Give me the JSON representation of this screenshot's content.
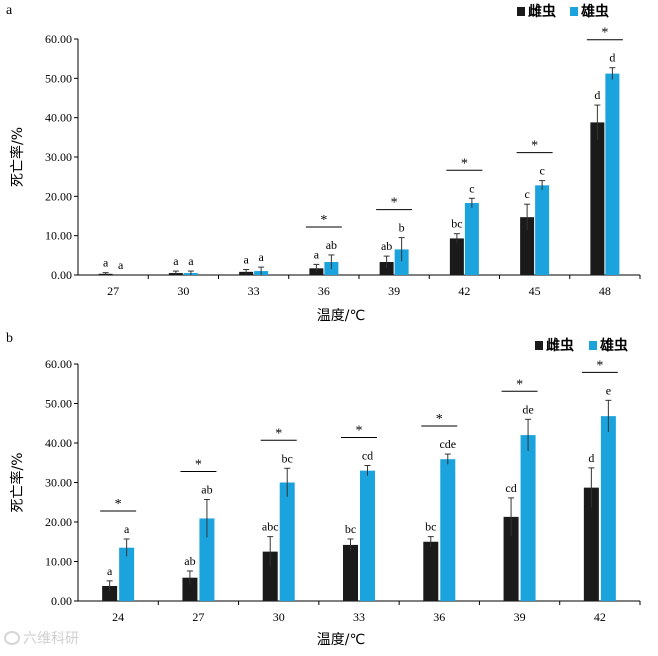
{
  "colors": {
    "female": "#1a1a1a",
    "male": "#1aa3dd",
    "axis": "#000000"
  },
  "legend": {
    "female": "雌虫",
    "male": "雄虫"
  },
  "watermark": "六维科研",
  "chart_data": [
    {
      "type": "bar",
      "panel": "a",
      "xlabel": "温度/℃",
      "ylabel": "死亡率/%",
      "ylim": [
        0,
        60
      ],
      "yticks": [
        "0.00",
        "10.00",
        "20.00",
        "30.00",
        "40.00",
        "50.00",
        "60.00"
      ],
      "categories": [
        "27",
        "30",
        "33",
        "36",
        "39",
        "42",
        "45",
        "48"
      ],
      "series": [
        {
          "name": "雌虫",
          "values": [
            0.3,
            0.5,
            0.8,
            1.7,
            3.3,
            9.3,
            14.7,
            38.8
          ],
          "errors": [
            0.3,
            0.5,
            0.6,
            1.0,
            1.5,
            1.2,
            3.3,
            4.4
          ],
          "labels": [
            "a",
            "a",
            "a",
            "a",
            "ab",
            "bc",
            "c",
            "d"
          ]
        },
        {
          "name": "雄虫",
          "values": [
            0.0,
            0.5,
            1.0,
            3.3,
            6.5,
            18.3,
            22.8,
            51.2
          ],
          "errors": [
            0.0,
            0.5,
            1.0,
            1.8,
            3.0,
            1.2,
            1.2,
            1.5
          ],
          "labels": [
            "a",
            "a",
            "a",
            "ab",
            "b",
            "c",
            "c",
            "d"
          ]
        }
      ],
      "significance": [
        "",
        "",
        "",
        "*",
        "*",
        "*",
        "*",
        "*"
      ]
    },
    {
      "type": "bar",
      "panel": "b",
      "xlabel": "温度/℃",
      "ylabel": "死亡率/%",
      "ylim": [
        0,
        60
      ],
      "yticks": [
        "0.00",
        "10.00",
        "20.00",
        "30.00",
        "40.00",
        "50.00",
        "60.00"
      ],
      "categories": [
        "24",
        "27",
        "30",
        "33",
        "36",
        "39",
        "42"
      ],
      "series": [
        {
          "name": "雌虫",
          "values": [
            3.8,
            5.9,
            12.5,
            14.2,
            15.0,
            21.3,
            28.7
          ],
          "errors": [
            1.3,
            1.7,
            3.8,
            1.5,
            1.3,
            4.8,
            5.0
          ],
          "labels": [
            "a",
            "ab",
            "abc",
            "bc",
            "bc",
            "cd",
            "d"
          ]
        },
        {
          "name": "雄虫",
          "values": [
            13.5,
            20.9,
            30.0,
            33.0,
            35.9,
            42.0,
            46.8
          ],
          "errors": [
            2.2,
            4.8,
            3.6,
            1.3,
            1.3,
            4.0,
            4.0
          ],
          "labels": [
            "a",
            "ab",
            "bc",
            "cd",
            "cde",
            "de",
            "e"
          ]
        }
      ],
      "significance": [
        "*",
        "*",
        "*",
        "*",
        "*",
        "*",
        "*"
      ]
    }
  ]
}
